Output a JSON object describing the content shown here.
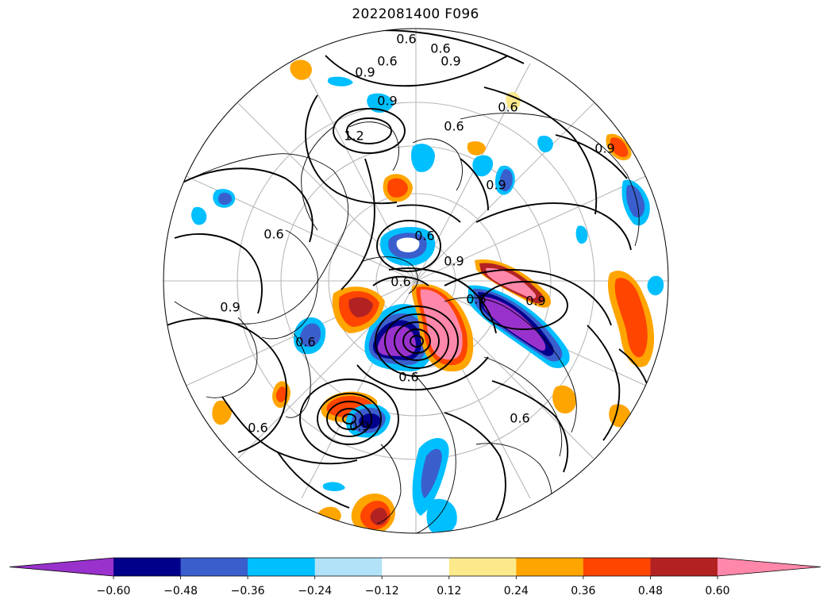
{
  "title": "2022081400 F096",
  "map": {
    "projection": "north-polar-stereographic",
    "contour_labels": [
      "0.6",
      "0.6",
      "0.6",
      "0.9",
      "0.9",
      "0.9",
      "1.2",
      "0.6",
      "0.6",
      "0.9",
      "0.6",
      "0.9",
      "0.6",
      "0.6",
      "0.9",
      "0.6",
      "0.6",
      "0.9",
      "0.6",
      "0.9",
      "0.6",
      "0.6",
      "0.9"
    ],
    "line_color": "#000000",
    "grid_color": "#b8b8b8"
  },
  "colorbar": {
    "extend": "both",
    "colors": [
      "#9932cc",
      "#00008b",
      "#3a5fcd",
      "#00bfff",
      "#b2e2f7",
      "#ffffff",
      "#fce98c",
      "#ffa500",
      "#ff4500",
      "#b22222",
      "#ff88aa"
    ],
    "tick_labels": [
      "−0.60",
      "−0.48",
      "−0.36",
      "−0.24",
      "−0.12",
      "0.12",
      "0.24",
      "0.36",
      "0.48",
      "0.60"
    ]
  }
}
